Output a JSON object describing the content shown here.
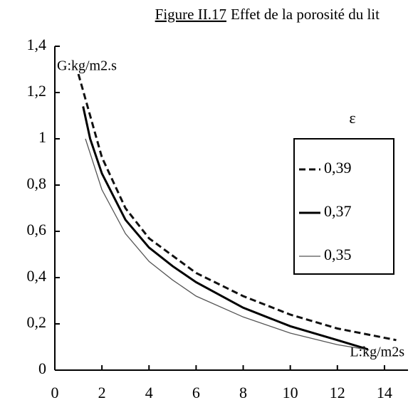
{
  "chart_data": {
    "type": "line",
    "figure_label": "Figure II.17",
    "title": "Effet de la porosité du lit",
    "y_label": "G:kg/m2.s",
    "x_label": "L:kg/m2s",
    "legend_title": "ε",
    "xlim": [
      0,
      15
    ],
    "xticks": [
      0,
      2,
      4,
      6,
      8,
      10,
      12,
      14
    ],
    "ylim": [
      0,
      1.4
    ],
    "yticks": [
      0,
      {
        "value": 0.2,
        "label": "0,2"
      },
      {
        "value": 0.4,
        "label": "0,4"
      },
      {
        "value": 0.6,
        "label": "0,6"
      },
      {
        "value": 0.8,
        "label": "0,8"
      },
      1,
      {
        "value": 1.2,
        "label": "1,2"
      },
      {
        "value": 1.4,
        "label": "1,4"
      }
    ],
    "series": [
      {
        "name": "0,39",
        "color": "#111111",
        "line_style": "dashed",
        "x": [
          1.0,
          2,
          3,
          4,
          6,
          8,
          10,
          12,
          14.5
        ],
        "values": [
          1.28,
          0.92,
          0.7,
          0.57,
          0.42,
          0.32,
          0.24,
          0.18,
          0.13
        ]
      },
      {
        "name": "0,37",
        "color": "#000000",
        "line_style": "solid",
        "x": [
          1.2,
          1.5,
          2,
          3,
          4,
          5,
          6,
          8,
          10,
          12,
          13.3
        ],
        "values": [
          1.14,
          1.0,
          0.85,
          0.65,
          0.53,
          0.45,
          0.38,
          0.27,
          0.19,
          0.13,
          0.09
        ]
      },
      {
        "name": "0,35",
        "color": "#555555",
        "line_style": "thin",
        "x": [
          1.3,
          2,
          3,
          4,
          5,
          6,
          8,
          10,
          12,
          13.2
        ],
        "values": [
          1.0,
          0.78,
          0.59,
          0.47,
          0.39,
          0.32,
          0.23,
          0.16,
          0.11,
          0.09
        ]
      }
    ]
  }
}
